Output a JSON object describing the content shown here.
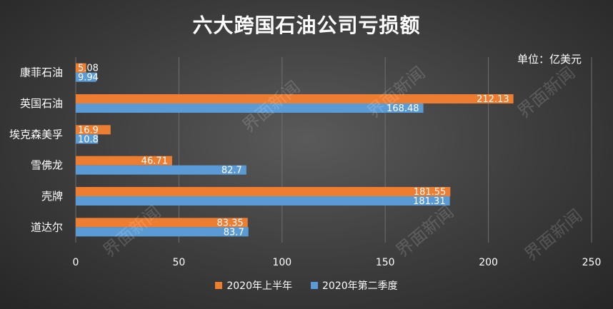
{
  "chart_data": {
    "type": "bar",
    "orientation": "horizontal",
    "title": "六大跨国石油公司亏损额",
    "unit_label": "单位：亿美元",
    "categories": [
      "康菲石油",
      "英国石油",
      "埃克森美孚",
      "雪佛龙",
      "壳牌",
      "道达尔"
    ],
    "series": [
      {
        "name": "2020年上半年",
        "color": "#ed7d31",
        "values": [
          5.08,
          212.13,
          16.9,
          46.71,
          181.55,
          83.35
        ]
      },
      {
        "name": "2020年第二季度",
        "color": "#5b9bd5",
        "values": [
          9.94,
          168.48,
          10.8,
          82.7,
          181.31,
          83.7
        ]
      }
    ],
    "data_labels": {
      "2020年上半年": [
        "5.08",
        "212.13",
        "16.9",
        "46.71",
        "181.55",
        "83.35"
      ],
      "2020年第二季度": [
        "9.94",
        "168.48",
        "10.8",
        "82.7",
        "181.31",
        "83.7"
      ]
    },
    "xlim": [
      0,
      250
    ],
    "xticks": [
      "0",
      "50",
      "100",
      "150",
      "200",
      "250"
    ],
    "grid": true,
    "legend_position": "bottom"
  },
  "watermark": "界面新闻"
}
